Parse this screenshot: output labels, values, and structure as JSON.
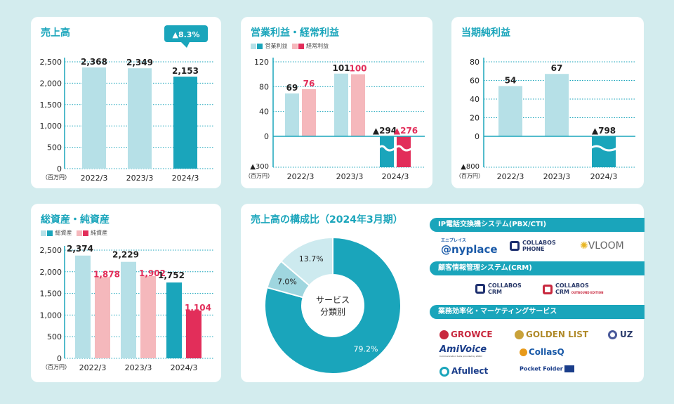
{
  "colors": {
    "bg": "#d3ecee",
    "light": "#b6e0e7",
    "dark": "#1aa5bb",
    "pink": "#f5b8bc",
    "red": "#e22e5a",
    "grid": "#1aa5bb",
    "text": "#222"
  },
  "unit_label": "（百万円）",
  "chart_data": [
    {
      "id": "sales",
      "type": "bar",
      "title": "売上高",
      "categories": [
        "2022/3",
        "2023/3",
        "2024/3"
      ],
      "series": [
        {
          "values": [
            2368,
            2349,
            2153
          ]
        }
      ],
      "value_labels": [
        "2,368",
        "2,349",
        "2,153"
      ],
      "ylim": [
        0,
        2500
      ],
      "yticks": [
        0,
        500,
        1000,
        1500,
        2000,
        2500
      ],
      "ytick_labels": [
        "0",
        "500",
        "1,000",
        "1,500",
        "2,000",
        "2,500"
      ],
      "callout": "▲8.3%"
    },
    {
      "id": "profit",
      "type": "bar",
      "title": "営業利益・経常利益",
      "categories": [
        "2022/3",
        "2023/3",
        "2024/3"
      ],
      "series": [
        {
          "name": "営業利益",
          "values": [
            69,
            101,
            -294
          ],
          "labels": [
            "69",
            "101",
            "▲294"
          ]
        },
        {
          "name": "経常利益",
          "values": [
            76,
            100,
            -276
          ],
          "labels": [
            "76",
            "100",
            "▲276"
          ]
        }
      ],
      "ylim": [
        -300,
        120
      ],
      "yticks": [
        0,
        40,
        80,
        120
      ],
      "ytick_labels": [
        "0",
        "40",
        "80",
        "120"
      ],
      "ymin_label": "▲300",
      "axis_break": true
    },
    {
      "id": "net",
      "type": "bar",
      "title": "当期純利益",
      "categories": [
        "2022/3",
        "2023/3",
        "2024/3"
      ],
      "series": [
        {
          "values": [
            54,
            67,
            -798
          ],
          "labels": [
            "54",
            "67",
            "▲798"
          ]
        }
      ],
      "ylim": [
        -800,
        80
      ],
      "yticks": [
        0,
        20,
        40,
        60,
        80
      ],
      "ytick_labels": [
        "0",
        "20",
        "40",
        "60",
        "80"
      ],
      "ymin_label": "▲800",
      "axis_break": true
    },
    {
      "id": "assets",
      "type": "bar",
      "title": "総資産・純資産",
      "categories": [
        "2022/3",
        "2023/3",
        "2024/3"
      ],
      "series": [
        {
          "name": "総資産",
          "values": [
            2374,
            2229,
            1752
          ],
          "labels": [
            "2,374",
            "2,229",
            "1,752"
          ]
        },
        {
          "name": "純資産",
          "values": [
            1878,
            1902,
            1104
          ],
          "labels": [
            "1,878",
            "1,902",
            "1,104"
          ]
        }
      ],
      "ylim": [
        0,
        2500
      ],
      "yticks": [
        0,
        500,
        1000,
        1500,
        2000,
        2500
      ],
      "ytick_labels": [
        "0",
        "500",
        "1,000",
        "1,500",
        "2,000",
        "2,500"
      ]
    },
    {
      "id": "composition",
      "type": "pie",
      "title": "売上高の構成比（2024年3月期）",
      "center_label": [
        "サービス",
        "分類別"
      ],
      "slices": [
        {
          "value": 79.2,
          "label": "79.2%"
        },
        {
          "value": 7.0,
          "label": "7.0%"
        },
        {
          "value": 13.7,
          "label": "13.7%"
        }
      ]
    }
  ],
  "business": {
    "pbx": {
      "header": "IP電話交換機システム(PBX/CTI)",
      "logos": [
        {
          "small": "エニプレイス",
          "name": "@nyplace"
        },
        {
          "name": "COLLABOS",
          "sub": "PHONE"
        },
        {
          "name": "VLOOM"
        }
      ]
    },
    "crm": {
      "header": "顧客情報管理システム(CRM)",
      "logos": [
        {
          "name": "COLLABOS",
          "sub": "CRM"
        },
        {
          "name": "COLLABOS",
          "sub": "CRM",
          "small": "OUTBOUND EDITION"
        }
      ]
    },
    "efficiency": {
      "header": "業務効率化・マーケティングサービス",
      "logos": [
        {
          "name": "GROWCE"
        },
        {
          "name": "GOLDEN LIST"
        },
        {
          "name": "UZ"
        },
        {
          "name": "AmiVoice",
          "small": "Communication Suite provided by ZURO"
        },
        {
          "name": "CollasQ"
        },
        {
          "name": "Afullect"
        },
        {
          "name": "Pocket Folder"
        }
      ]
    }
  }
}
